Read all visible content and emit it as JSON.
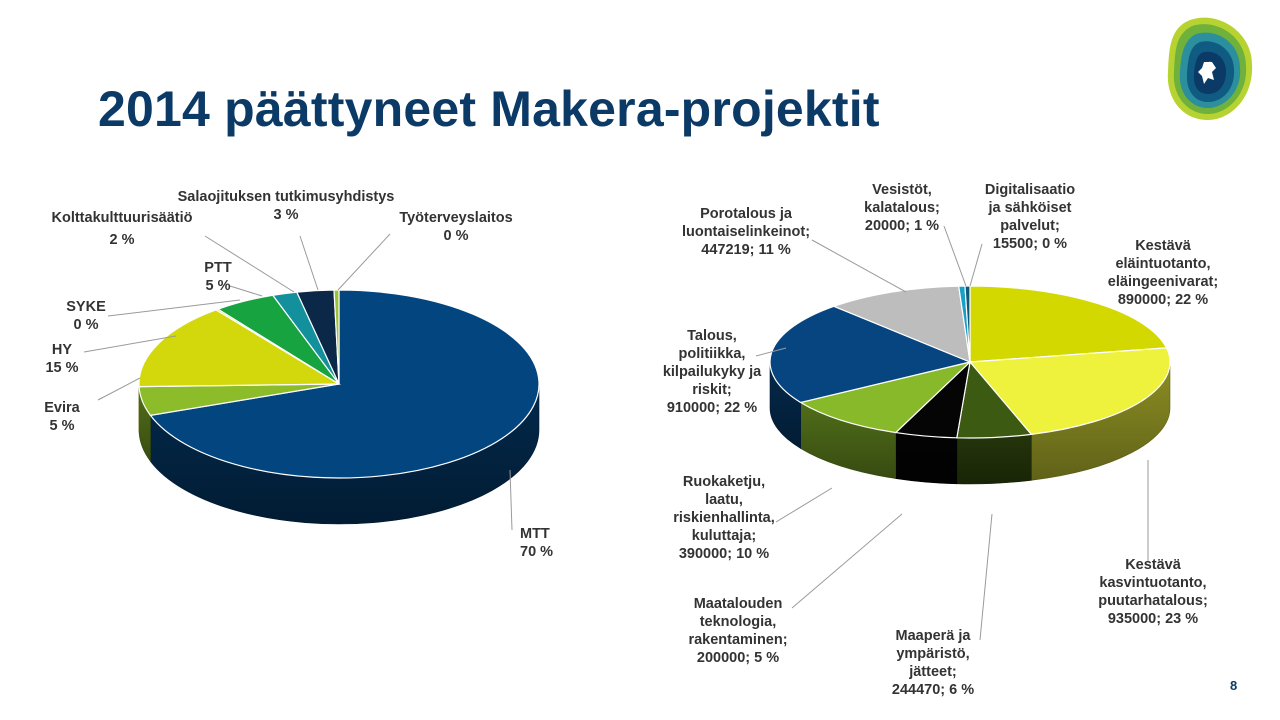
{
  "title": "2014 päättyneet Makera-projektit",
  "page_number": "8",
  "logo": {
    "icon": "finnish-lion-emblem"
  },
  "chart_data": [
    {
      "type": "pie",
      "style": "3d",
      "title": "",
      "slices": [
        {
          "label": "MTT",
          "value_text": "70 %",
          "percent": 70,
          "color": "#03457f"
        },
        {
          "label": "Evira",
          "value_text": "5 %",
          "percent": 5,
          "color": "#8cbc2a"
        },
        {
          "label": "HY",
          "value_text": "15 %",
          "percent": 15,
          "color": "#d2d80c"
        },
        {
          "label": "SYKE",
          "value_text": "0 %",
          "percent": 0.2,
          "color": "#d2d80c"
        },
        {
          "label": "PTT",
          "value_text": "5 %",
          "percent": 5,
          "color": "#17a33f"
        },
        {
          "label": "Kolttakulttuurisäätiö",
          "value_text": "2 %",
          "percent": 2,
          "color": "#12909c"
        },
        {
          "label": "Salaojituksen tutkimusyhdistys",
          "value_text": "3 %",
          "percent": 3,
          "color": "#0b2848"
        },
        {
          "label": "Työterveyslaitos",
          "value_text": "0 %",
          "percent": 0.4,
          "color": "#9bc136"
        }
      ]
    },
    {
      "type": "pie",
      "style": "3d",
      "title": "",
      "slices": [
        {
          "label": "Kestävä eläintuotanto, eläingeenivarat;",
          "value": 890000,
          "value_text": "890000; 22 %",
          "percent": 22,
          "color": "#d3d800"
        },
        {
          "label": "Kestävä kasvintuotanto, puutarhatalous;",
          "value": 935000,
          "value_text": "935000; 23 %",
          "percent": 23,
          "color": "#eef23c"
        },
        {
          "label": "Maaperä ja ympäristö, jätteet;",
          "value": 244470,
          "value_text": "244470; 6 %",
          "percent": 6,
          "color": "#3d5a12"
        },
        {
          "label": "Maatalouden teknologia, rakentaminen;",
          "value": 200000,
          "value_text": "200000; 5 %",
          "percent": 5,
          "color": "#050505"
        },
        {
          "label": "Ruokaketju, laatu, riskienhallinta, kuluttaja;",
          "value": 390000,
          "value_text": "390000; 10 %",
          "percent": 10,
          "color": "#88b92a"
        },
        {
          "label": "Talous, politiikka, kilpailukyky ja riskit;",
          "value": 910000,
          "value_text": "910000; 22 %",
          "percent": 22,
          "color": "#074580"
        },
        {
          "label": "Porotalous ja luontaiselinkeinot;",
          "value": 447219,
          "value_text": "447219; 11 %",
          "percent": 11,
          "color": "#bdbdbd"
        },
        {
          "label": "Vesistöt, kalatalous;",
          "value": 20000,
          "value_text": "20000; 1 %",
          "percent": 0.5,
          "color": "#1aa0c8"
        },
        {
          "label": "Digitalisaatio ja sähköiset palvelut;",
          "value": 15500,
          "value_text": "15500; 0 %",
          "percent": 0.4,
          "color": "#0f5a78"
        }
      ]
    }
  ]
}
